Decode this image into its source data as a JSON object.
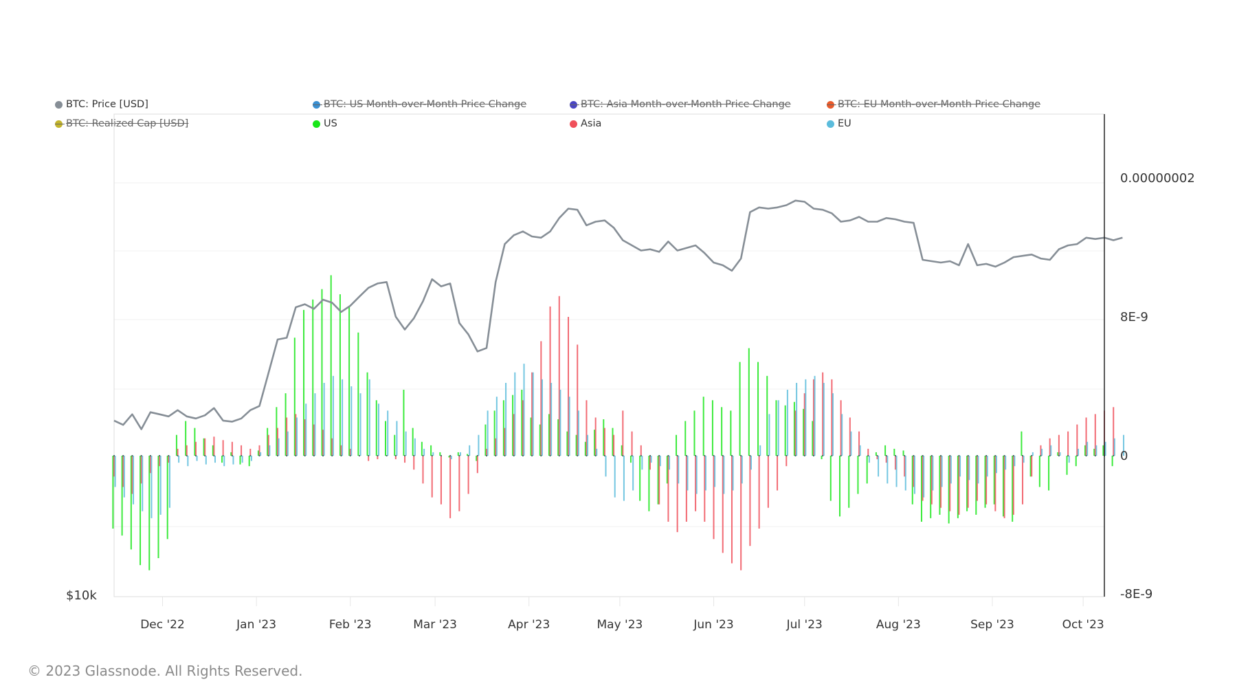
{
  "legend": [
    {
      "label": "BTC: Price [USD]",
      "color": "#868e96",
      "hidden": false
    },
    {
      "label": "BTC: US Month-over-Month Price Change",
      "color": "#3a8fd1",
      "hidden": true
    },
    {
      "label": "BTC: Asia Month-over-Month Price Change",
      "color": "#4a45c2",
      "hidden": true
    },
    {
      "label": "BTC: EU Month-over-Month Price Change",
      "color": "#ea5a2a",
      "hidden": true
    },
    {
      "label": "BTC: Realized Cap [USD]",
      "color": "#c4b52b",
      "hidden": true
    },
    {
      "label": "US",
      "color": "#19e619",
      "hidden": false
    },
    {
      "label": "Asia",
      "color": "#f0505a",
      "hidden": false
    },
    {
      "label": "EU",
      "color": "#5bbcdc",
      "hidden": false
    }
  ],
  "copyright": "© 2023 Glassnode. All Rights Reserved.",
  "chart_data": {
    "type": "bar",
    "title": "",
    "x_start_date": "2022-11-15",
    "x_end_date": "2023-10-08",
    "sample_step_days": 3,
    "x_ticks": [
      "Dec '22",
      "Jan '23",
      "Feb '23",
      "Mar '23",
      "Apr '23",
      "May '23",
      "Jun '23",
      "Jul '23",
      "Aug '23",
      "Sep '23",
      "Oct '23"
    ],
    "x_tick_dates": [
      "2022-12-01",
      "2023-01-01",
      "2023-02-01",
      "2023-03-01",
      "2023-04-01",
      "2023-05-01",
      "2023-06-01",
      "2023-07-01",
      "2023-08-01",
      "2023-09-01",
      "2023-10-01"
    ],
    "y_left": {
      "label": "",
      "scale": "log",
      "tick_labels": [
        "$10k"
      ],
      "tick_values": [
        10000
      ]
    },
    "y_right": {
      "label": "",
      "tick_labels": [
        "0.00000002",
        "8E-9",
        "0",
        "-8E-9"
      ],
      "tick_values": [
        2e-08,
        8e-09,
        0,
        -8e-09
      ],
      "unit_of_series": "1E-9"
    },
    "grid": true,
    "legend_position": "top",
    "series": [
      {
        "name": "US",
        "type": "bar",
        "color": "#19e619",
        "axis": "right",
        "values": [
          -4.2,
          -4.6,
          -5.4,
          -6.3,
          -6.6,
          -5.9,
          -4.8,
          1.2,
          2.0,
          1.6,
          1.0,
          0.6,
          -0.4,
          0.2,
          -0.5,
          -0.6,
          0.3,
          1.6,
          2.8,
          3.6,
          6.8,
          8.4,
          9.0,
          9.6,
          10.4,
          9.3,
          8.6,
          7.1,
          4.8,
          3.2,
          2.0,
          1.2,
          3.8,
          1.6,
          0.8,
          0.6,
          0.2,
          -0.1,
          0.2,
          0.1,
          -0.3,
          1.8,
          2.6,
          3.2,
          3.5,
          3.8,
          2.2,
          1.8,
          2.4,
          2.1,
          1.4,
          1.2,
          0.8,
          1.5,
          2.1,
          1.6,
          0.6,
          -0.4,
          -2.6,
          -3.2,
          -2.8,
          -1.6,
          1.2,
          2.0,
          2.6,
          3.4,
          3.2,
          2.8,
          2.6,
          5.4,
          6.2,
          5.4,
          4.6,
          3.2,
          2.9,
          3.1,
          2.7,
          2.0,
          -0.2,
          -2.6,
          -3.5,
          -3.0,
          -2.2,
          -1.6,
          0.2,
          0.6,
          0.4,
          0.3,
          -2.8,
          -3.8,
          -3.6,
          -3.4,
          -3.9,
          -3.6,
          -3.2,
          -3.4,
          -3.0,
          -2.8,
          -3.5,
          -3.8,
          1.4,
          -1.2,
          -1.8,
          -2.0,
          0.2,
          -1.1,
          -0.6,
          0.6,
          0.4,
          0.6,
          -0.6
        ]
      },
      {
        "name": "Asia",
        "type": "bar",
        "color": "#f0505a",
        "axis": "right",
        "values": [
          -1.2,
          -1.8,
          -2.2,
          -1.6,
          -1.0,
          -0.6,
          -0.4,
          0.4,
          0.6,
          0.8,
          1.0,
          1.1,
          0.9,
          0.8,
          0.6,
          0.4,
          0.6,
          1.2,
          1.6,
          2.2,
          2.4,
          2.1,
          1.8,
          1.5,
          1.0,
          0.6,
          0.4,
          0.0,
          -0.3,
          -0.2,
          0.0,
          -0.2,
          -0.4,
          -0.8,
          -1.6,
          -2.4,
          -2.8,
          -3.6,
          -3.2,
          -2.2,
          -1.0,
          0.4,
          1.0,
          1.6,
          2.4,
          3.2,
          4.8,
          6.6,
          8.6,
          9.2,
          8.0,
          6.4,
          3.2,
          2.2,
          1.6,
          1.2,
          2.6,
          1.4,
          0.6,
          -0.8,
          -2.8,
          -3.8,
          -4.4,
          -3.8,
          -3.2,
          -3.8,
          -4.8,
          -5.6,
          -6.2,
          -6.6,
          -5.2,
          -4.2,
          -3.0,
          -2.0,
          -0.6,
          2.6,
          3.6,
          4.4,
          4.8,
          4.4,
          3.2,
          2.2,
          1.4,
          0.4,
          -0.2,
          -0.4,
          -0.8,
          -1.2,
          -1.8,
          -2.6,
          -2.8,
          -3.0,
          -3.2,
          -3.4,
          -3.0,
          -2.6,
          -2.8,
          -3.2,
          -3.6,
          -3.4,
          -2.8,
          -1.2,
          0.6,
          1.0,
          1.2,
          1.4,
          1.8,
          2.2,
          2.4,
          2.6,
          2.8
        ]
      },
      {
        "name": "EU",
        "type": "bar",
        "color": "#5bbcdc",
        "axis": "right",
        "values": [
          -1.8,
          -2.4,
          -2.8,
          -3.2,
          -3.6,
          -3.4,
          -3.0,
          -0.4,
          -0.6,
          -0.3,
          -0.5,
          -0.4,
          -0.6,
          -0.5,
          -0.4,
          -0.3,
          0.2,
          0.6,
          1.0,
          1.4,
          2.2,
          3.0,
          3.6,
          4.2,
          4.6,
          4.4,
          4.0,
          3.6,
          4.4,
          3.0,
          2.6,
          2.0,
          1.4,
          1.0,
          0.4,
          0.2,
          0.0,
          -0.2,
          0.2,
          0.6,
          1.2,
          2.6,
          3.4,
          4.2,
          4.8,
          5.3,
          4.8,
          4.4,
          4.2,
          3.8,
          3.4,
          2.6,
          1.2,
          0.4,
          -1.2,
          -2.4,
          -2.6,
          -2.0,
          -0.8,
          -0.4,
          -0.6,
          -0.8,
          -1.6,
          -2.0,
          -2.2,
          -2.0,
          -1.8,
          -2.2,
          -2.0,
          -1.6,
          -0.8,
          0.6,
          2.4,
          3.2,
          3.8,
          4.2,
          4.4,
          4.6,
          4.2,
          3.6,
          2.4,
          1.4,
          0.6,
          -0.4,
          -1.2,
          -1.6,
          -1.8,
          -2.0,
          -2.2,
          -2.4,
          -2.0,
          -1.8,
          -1.6,
          -1.2,
          -1.4,
          -1.6,
          -1.2,
          -1.0,
          -0.8,
          -0.6,
          -0.4,
          0.2,
          0.4,
          0.6,
          0.2,
          -0.4,
          0.4,
          0.8,
          0.6,
          0.8,
          1.0,
          1.2
        ]
      },
      {
        "name": "BTC: Price [USD]",
        "type": "line",
        "color": "#868e96",
        "axis": "left",
        "values": [
          16600,
          16400,
          16900,
          16200,
          17000,
          16900,
          16800,
          17100,
          16800,
          16700,
          16850,
          17200,
          16600,
          16550,
          16700,
          17100,
          17300,
          19000,
          20900,
          21000,
          22900,
          23100,
          22800,
          23400,
          23200,
          22600,
          23000,
          23600,
          24200,
          24500,
          24600,
          22300,
          21500,
          22200,
          23300,
          24800,
          24300,
          24500,
          21900,
          21200,
          20200,
          20400,
          24600,
          27400,
          28100,
          28400,
          28000,
          27900,
          28400,
          29500,
          30300,
          30200,
          28900,
          29200,
          29300,
          28700,
          27700,
          27300,
          26900,
          27000,
          26800,
          27600,
          26900,
          27100,
          27300,
          26700,
          26000,
          25800,
          25400,
          26300,
          30000,
          30400,
          30300,
          30400,
          30600,
          31000,
          30900,
          30300,
          30200,
          29900,
          29200,
          29300,
          29600,
          29200,
          29200,
          29500,
          29400,
          29200,
          29100,
          26200,
          26100,
          26000,
          26100,
          25800,
          27400,
          25800,
          25900,
          25700,
          26000,
          26400,
          26500,
          26600,
          26300,
          26200,
          27000,
          27300,
          27400,
          27900,
          27800,
          27900,
          27700,
          27900
        ]
      }
    ]
  }
}
